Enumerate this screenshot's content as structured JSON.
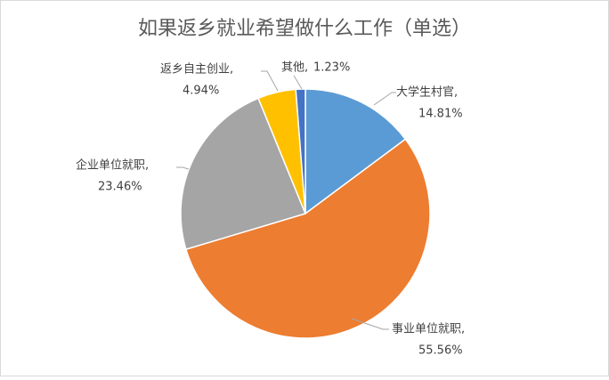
{
  "chart_data": {
    "type": "pie",
    "title": "如果返乡就业希望做什么工作（单选）",
    "categories": [
      "大学生村官,",
      "事业单位就职,",
      "企业单位就职,",
      "返乡自主创业,",
      "其他,"
    ],
    "values": [
      14.81,
      55.56,
      23.46,
      4.94,
      1.23
    ],
    "value_labels": [
      "14.81%",
      "55.56%",
      "23.46%",
      "4.94%",
      "1.23%"
    ],
    "colors": [
      "#5b9bd5",
      "#ed7d31",
      "#a5a5a5",
      "#ffc000",
      "#4472c4"
    ]
  }
}
